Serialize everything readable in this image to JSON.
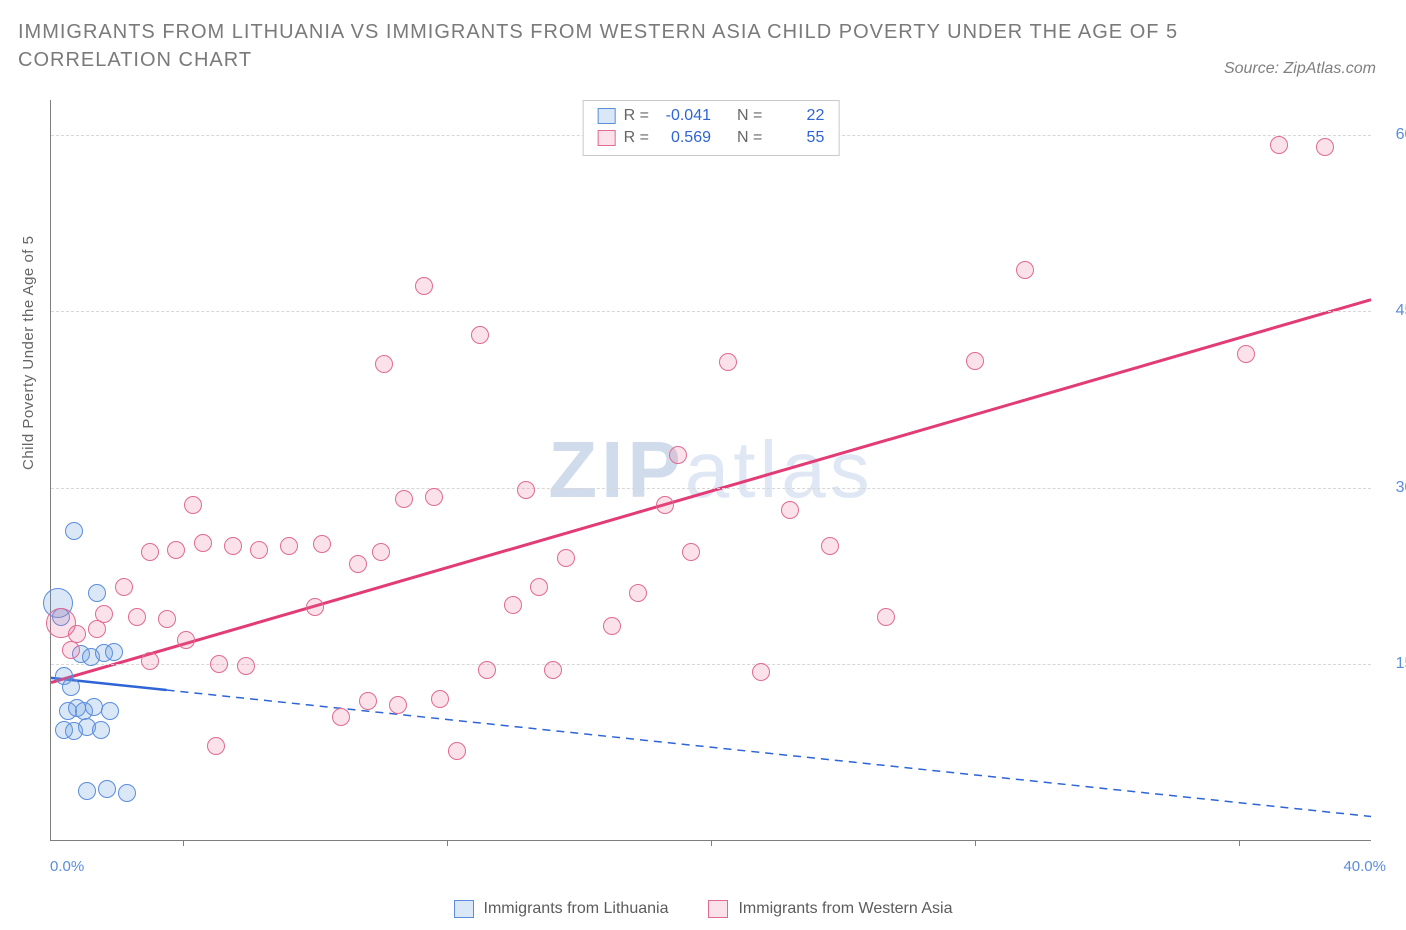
{
  "title": "IMMIGRANTS FROM LITHUANIA VS IMMIGRANTS FROM WESTERN ASIA CHILD POVERTY UNDER THE AGE OF 5 CORRELATION CHART",
  "source": "Source: ZipAtlas.com",
  "ylabel": "Child Poverty Under the Age of 5",
  "watermark_a": "ZIP",
  "watermark_b": "atlas",
  "chart": {
    "type": "scatter",
    "xlim": [
      0,
      40
    ],
    "ylim": [
      0,
      63
    ],
    "y_ticks": [
      15,
      30,
      45,
      60
    ],
    "x_ticks_minor": [
      4,
      12,
      20,
      28,
      36
    ],
    "x_zero_label": "0.0%",
    "x_max_label": "40.0%",
    "y_tick_suffix": "%",
    "background_color": "#ffffff",
    "grid_color": "#d7d7d7",
    "axis_color": "#7e7e7e",
    "marker_radius": 9,
    "marker_radius_large": 15,
    "marker_border_width": 1.2,
    "series": [
      {
        "id": "lithuania",
        "label": "Immigrants from Lithuania",
        "fill": "rgba(108,158,225,0.25)",
        "stroke": "#5a8ddb",
        "trend_color": "#2e64d6",
        "trend_width": 2.5,
        "trend_dash": "solid_then_dash",
        "R": "-0.041",
        "N": "22",
        "trend": {
          "x1": 0,
          "y1": 13.8,
          "x2": 40,
          "y2": 2.0,
          "solid_until_x": 3.5
        },
        "points": [
          {
            "x": 0.2,
            "y": 20.2,
            "r": 15
          },
          {
            "x": 0.3,
            "y": 19.0
          },
          {
            "x": 0.7,
            "y": 26.3
          },
          {
            "x": 1.4,
            "y": 21.0
          },
          {
            "x": 0.4,
            "y": 14.0
          },
          {
            "x": 0.6,
            "y": 13.0
          },
          {
            "x": 0.9,
            "y": 15.8
          },
          {
            "x": 1.2,
            "y": 15.6
          },
          {
            "x": 1.6,
            "y": 15.9
          },
          {
            "x": 1.9,
            "y": 16.0
          },
          {
            "x": 0.5,
            "y": 11.0
          },
          {
            "x": 0.8,
            "y": 11.2
          },
          {
            "x": 1.0,
            "y": 11.0
          },
          {
            "x": 1.3,
            "y": 11.3
          },
          {
            "x": 1.8,
            "y": 11.0
          },
          {
            "x": 0.4,
            "y": 9.4
          },
          {
            "x": 0.7,
            "y": 9.3
          },
          {
            "x": 1.1,
            "y": 9.6
          },
          {
            "x": 1.5,
            "y": 9.4
          },
          {
            "x": 1.1,
            "y": 4.2
          },
          {
            "x": 1.7,
            "y": 4.3
          },
          {
            "x": 2.3,
            "y": 4.0
          }
        ]
      },
      {
        "id": "western_asia",
        "label": "Immigrants from Western Asia",
        "fill": "rgba(235,110,150,0.20)",
        "stroke": "#e06a92",
        "trend_color": "#e23b75",
        "trend_width": 3,
        "trend_dash": "solid",
        "R": "0.569",
        "N": "55",
        "trend": {
          "x1": 0,
          "y1": 13.4,
          "x2": 40,
          "y2": 46.0
        },
        "points": [
          {
            "x": 0.3,
            "y": 18.5,
            "r": 15
          },
          {
            "x": 0.8,
            "y": 17.5
          },
          {
            "x": 1.4,
            "y": 18.0
          },
          {
            "x": 0.6,
            "y": 16.2
          },
          {
            "x": 1.6,
            "y": 19.2
          },
          {
            "x": 2.6,
            "y": 19.0
          },
          {
            "x": 2.2,
            "y": 21.5
          },
          {
            "x": 3.0,
            "y": 15.2
          },
          {
            "x": 3.5,
            "y": 18.8
          },
          {
            "x": 4.1,
            "y": 17.0
          },
          {
            "x": 3.0,
            "y": 24.5
          },
          {
            "x": 3.8,
            "y": 24.7
          },
          {
            "x": 4.6,
            "y": 25.3
          },
          {
            "x": 5.5,
            "y": 25.0
          },
          {
            "x": 6.3,
            "y": 24.7
          },
          {
            "x": 7.2,
            "y": 25.0
          },
          {
            "x": 8.2,
            "y": 25.2
          },
          {
            "x": 4.3,
            "y": 28.5
          },
          {
            "x": 5.1,
            "y": 15.0
          },
          {
            "x": 5.9,
            "y": 14.8
          },
          {
            "x": 5.0,
            "y": 8.0
          },
          {
            "x": 8.8,
            "y": 10.5
          },
          {
            "x": 9.6,
            "y": 11.8
          },
          {
            "x": 10.5,
            "y": 11.5
          },
          {
            "x": 11.8,
            "y": 12.0
          },
          {
            "x": 8.0,
            "y": 19.8
          },
          {
            "x": 9.3,
            "y": 23.5
          },
          {
            "x": 10.0,
            "y": 24.5
          },
          {
            "x": 10.7,
            "y": 29.0
          },
          {
            "x": 11.6,
            "y": 29.2
          },
          {
            "x": 10.1,
            "y": 40.5
          },
          {
            "x": 11.3,
            "y": 47.2
          },
          {
            "x": 13.0,
            "y": 43.0
          },
          {
            "x": 12.3,
            "y": 7.6
          },
          {
            "x": 13.2,
            "y": 14.5
          },
          {
            "x": 14.0,
            "y": 20.0
          },
          {
            "x": 14.8,
            "y": 21.5
          },
          {
            "x": 15.6,
            "y": 24.0
          },
          {
            "x": 14.4,
            "y": 29.8
          },
          {
            "x": 15.2,
            "y": 14.5
          },
          {
            "x": 17.0,
            "y": 18.2
          },
          {
            "x": 17.8,
            "y": 21.0
          },
          {
            "x": 18.6,
            "y": 28.5
          },
          {
            "x": 19.4,
            "y": 24.5
          },
          {
            "x": 20.5,
            "y": 40.7
          },
          {
            "x": 19.0,
            "y": 32.8
          },
          {
            "x": 21.5,
            "y": 14.3
          },
          {
            "x": 22.4,
            "y": 28.1
          },
          {
            "x": 23.6,
            "y": 25.0
          },
          {
            "x": 25.3,
            "y": 19.0
          },
          {
            "x": 28.0,
            "y": 40.8
          },
          {
            "x": 29.5,
            "y": 48.5
          },
          {
            "x": 36.2,
            "y": 41.4
          },
          {
            "x": 37.2,
            "y": 59.2
          },
          {
            "x": 38.6,
            "y": 59.0
          }
        ]
      }
    ]
  },
  "legend_labels": {
    "R": "R =",
    "N": "N ="
  }
}
